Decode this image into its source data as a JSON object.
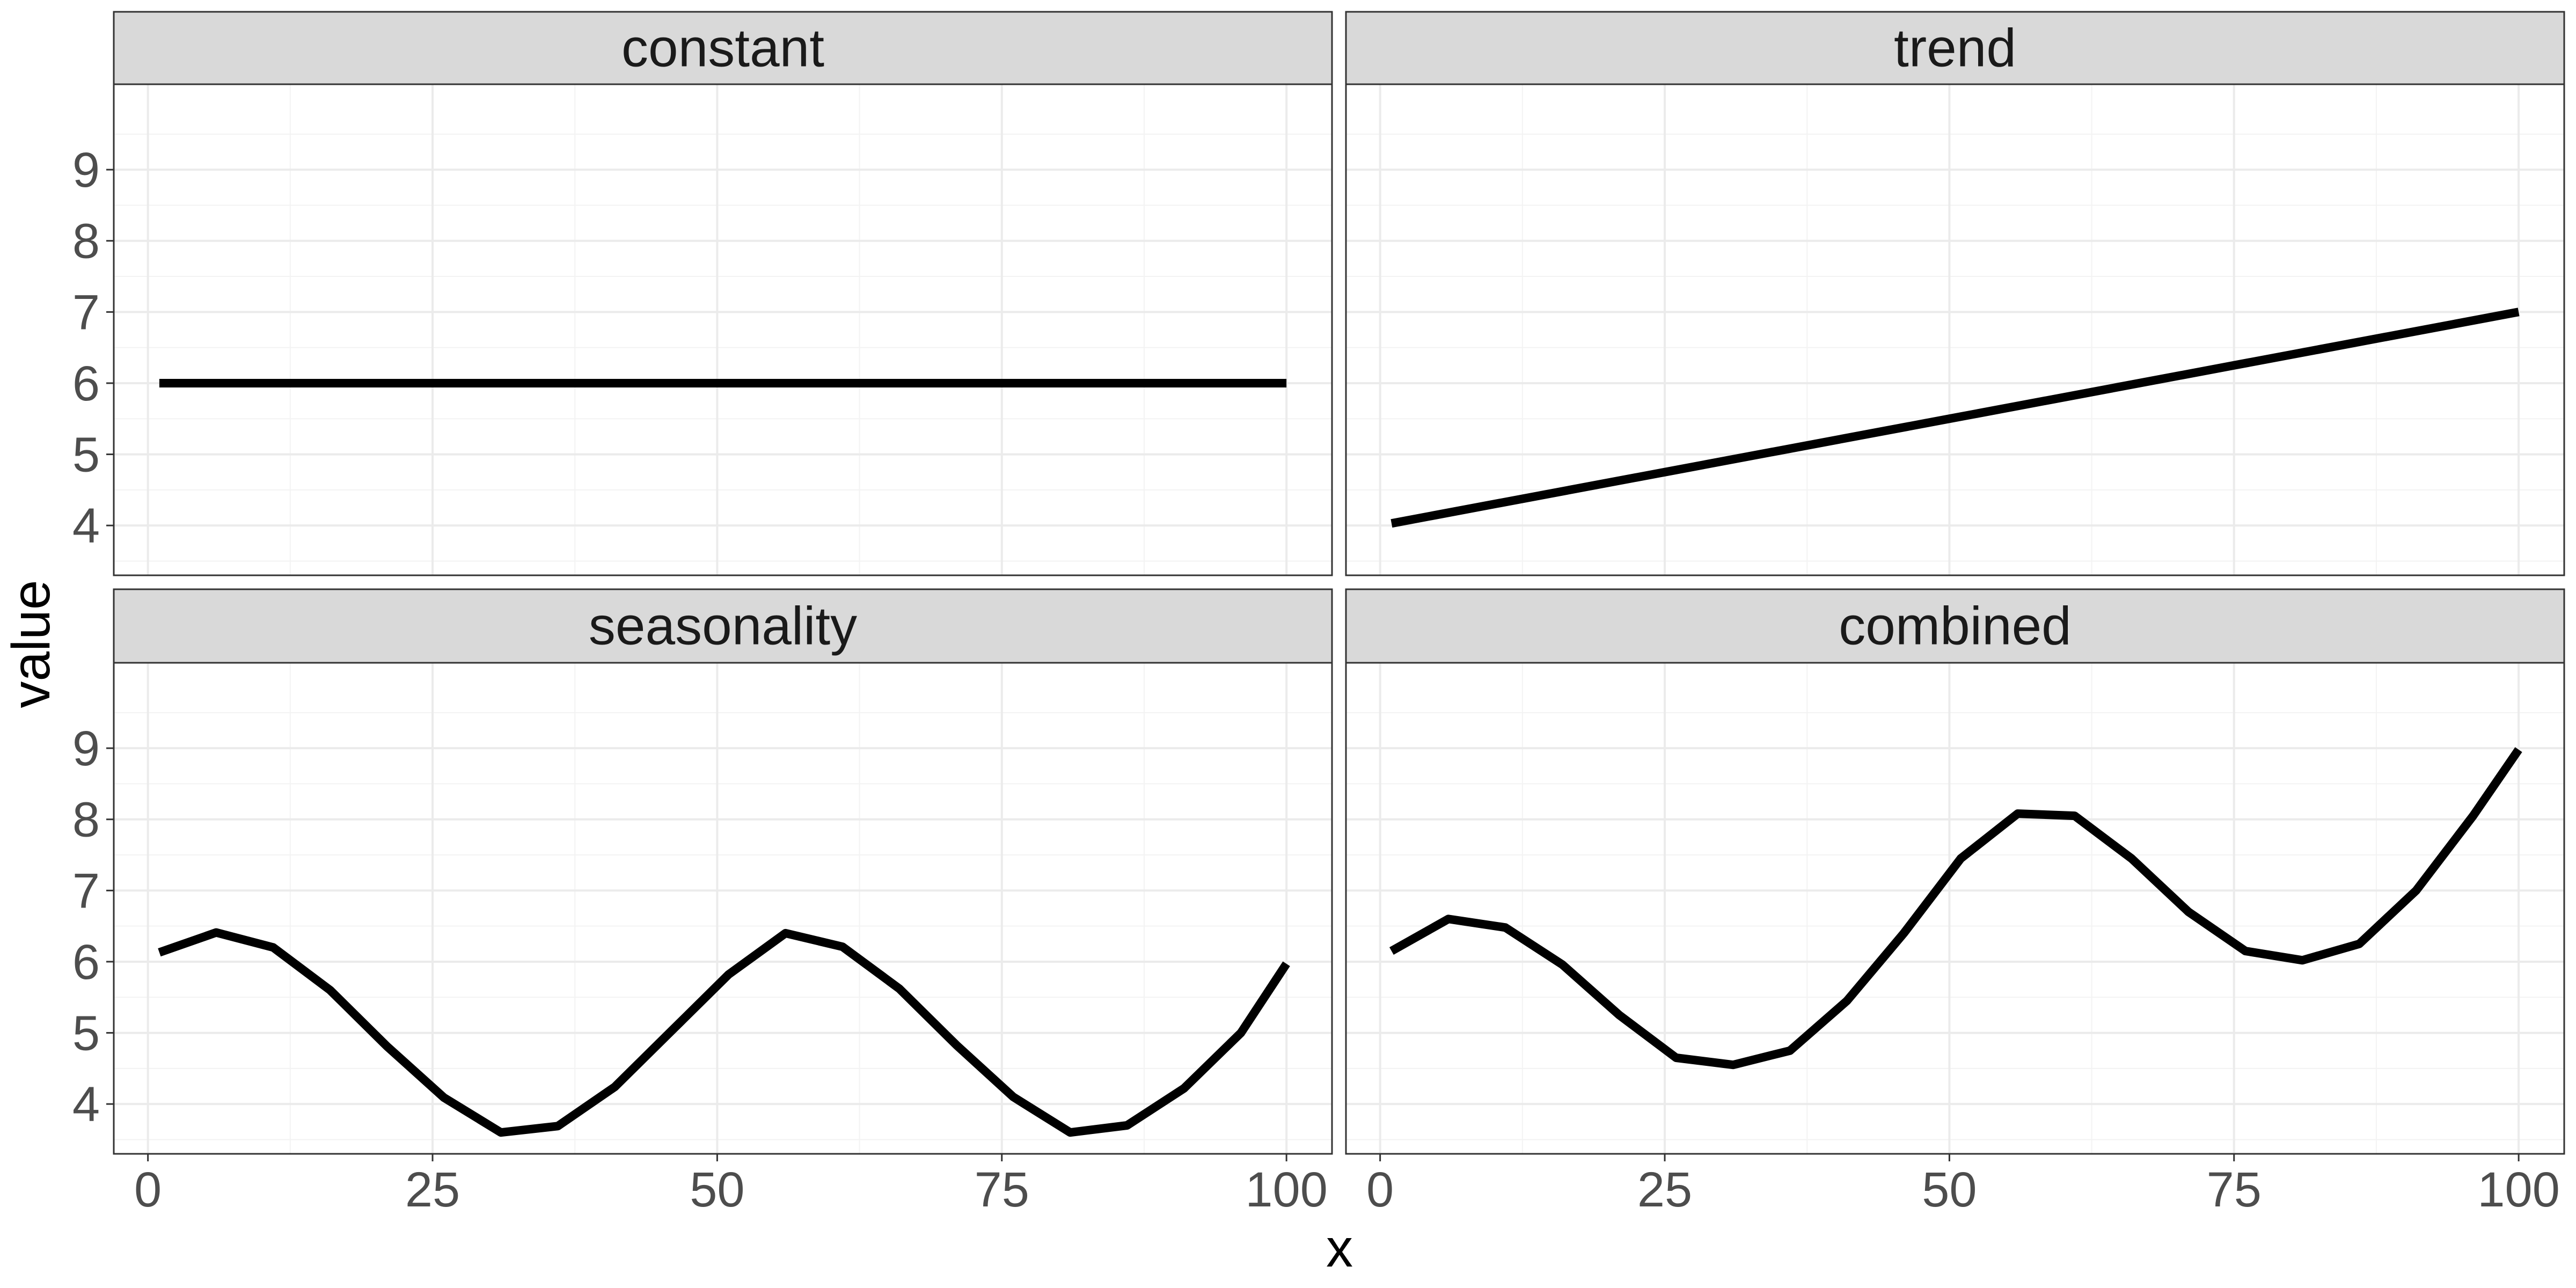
{
  "chart_data": {
    "type": "line",
    "xlabel": "x",
    "ylabel": "value",
    "xlim": [
      -3,
      104
    ],
    "ylim": [
      3.3,
      10.2
    ],
    "x_ticks": [
      0,
      25,
      50,
      75,
      100
    ],
    "y_ticks": [
      4,
      5,
      6,
      7,
      8,
      9
    ],
    "grid": true,
    "facets": [
      {
        "name": "constant",
        "x": [
          1,
          25,
          50,
          75,
          100
        ],
        "y": [
          6,
          6,
          6,
          6,
          6
        ]
      },
      {
        "name": "trend",
        "x": [
          1,
          25,
          50,
          75,
          100
        ],
        "y": [
          4.03,
          4.75,
          5.5,
          6.25,
          7.0
        ]
      },
      {
        "name": "seasonality",
        "x": [
          1,
          6,
          11,
          16,
          21,
          26,
          31,
          36,
          41,
          46,
          51,
          56,
          61,
          66,
          71,
          76,
          81,
          86,
          91,
          96,
          100
        ],
        "y": [
          6.13,
          6.41,
          6.2,
          5.6,
          4.81,
          4.09,
          3.6,
          3.69,
          4.24,
          5.03,
          5.82,
          6.4,
          6.21,
          5.62,
          4.83,
          4.1,
          3.6,
          3.7,
          4.22,
          5.0,
          5.97
        ]
      },
      {
        "name": "combined",
        "x": [
          1,
          6,
          11,
          16,
          21,
          26,
          31,
          36,
          41,
          46,
          51,
          56,
          61,
          66,
          71,
          76,
          81,
          86,
          91,
          96,
          100
        ],
        "y": [
          6.15,
          6.6,
          6.48,
          5.96,
          5.25,
          4.65,
          4.55,
          4.75,
          5.45,
          6.4,
          7.45,
          8.08,
          8.05,
          7.45,
          6.7,
          6.15,
          6.02,
          6.25,
          7.0,
          8.05,
          8.98
        ]
      }
    ]
  }
}
